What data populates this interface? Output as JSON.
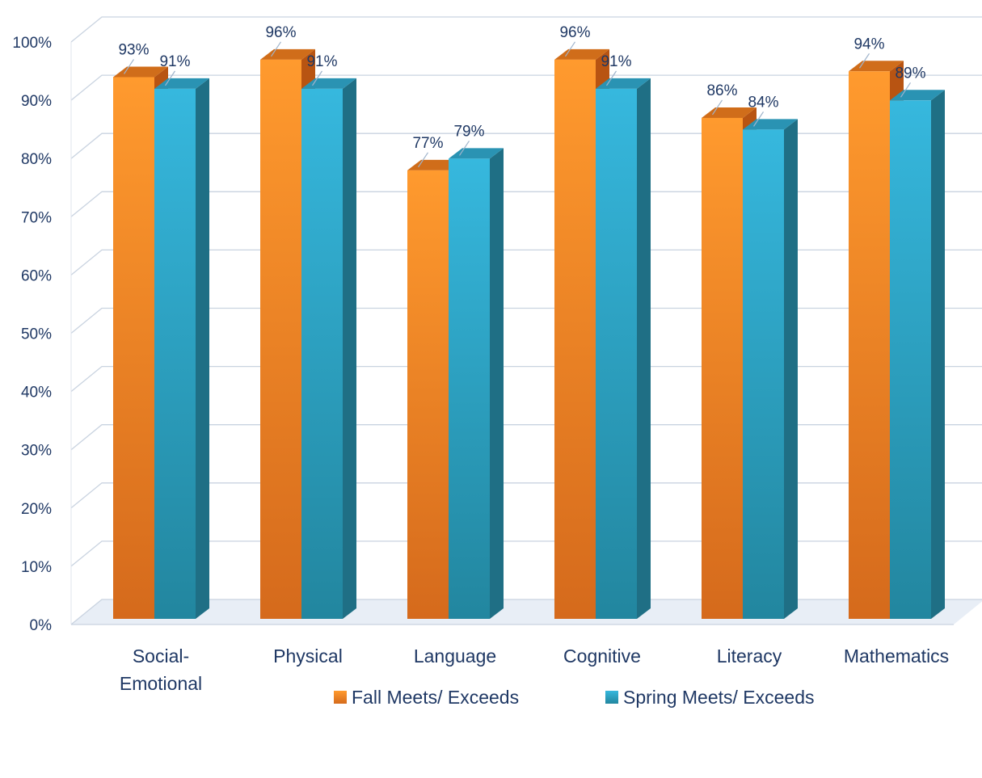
{
  "chart_data": {
    "type": "bar",
    "style": "3d-clustered-column",
    "categories": [
      [
        "Social-",
        "Emotional"
      ],
      [
        "Physical"
      ],
      [
        "Language"
      ],
      [
        "Cognitive"
      ],
      [
        "Literacy"
      ],
      [
        "Mathematics"
      ]
    ],
    "series": [
      {
        "name": "Fall Meets/ Exceeds",
        "values": [
          93,
          96,
          77,
          96,
          86,
          94
        ],
        "labels": [
          "93%",
          "96%",
          "77%",
          "96%",
          "86%",
          "94%"
        ],
        "color": "#f28a22"
      },
      {
        "name": "Spring Meets/ Exceeds",
        "values": [
          91,
          91,
          79,
          91,
          84,
          89
        ],
        "labels": [
          "91%",
          "91%",
          "79%",
          "91%",
          "84%",
          "89%"
        ],
        "color": "#2aaed3"
      }
    ],
    "ylim": [
      0,
      100
    ],
    "yticks": [
      "0%",
      "10%",
      "20%",
      "30%",
      "40%",
      "50%",
      "60%",
      "70%",
      "80%",
      "90%",
      "100%"
    ],
    "grid": true,
    "legend": "bottom-center"
  }
}
